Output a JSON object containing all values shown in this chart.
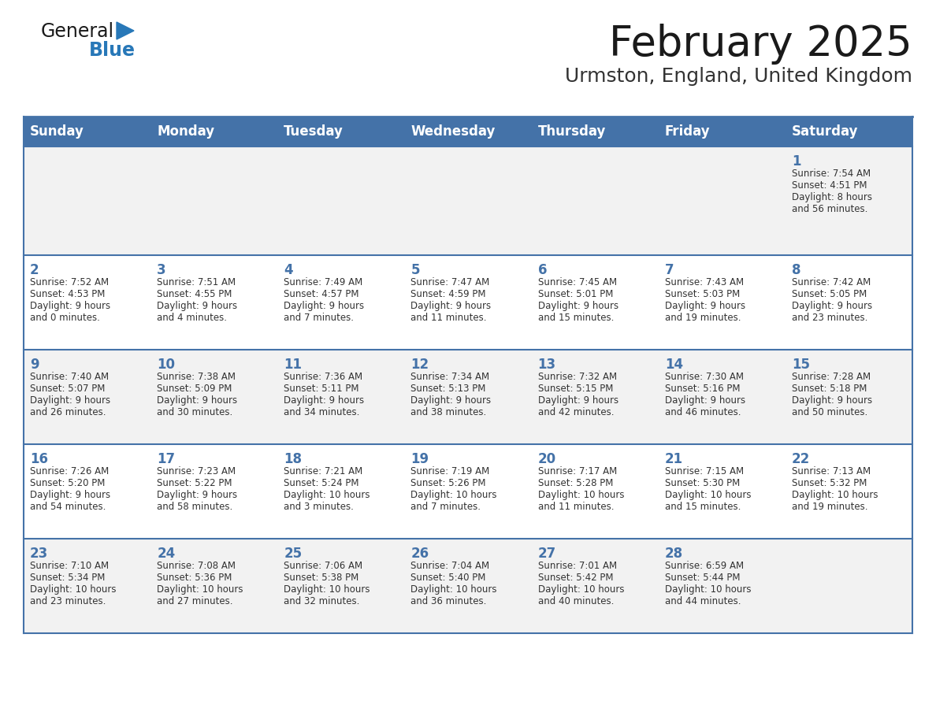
{
  "title": "February 2025",
  "subtitle": "Urmston, England, United Kingdom",
  "days_of_week": [
    "Sunday",
    "Monday",
    "Tuesday",
    "Wednesday",
    "Thursday",
    "Friday",
    "Saturday"
  ],
  "header_bg": "#4472a8",
  "header_text_color": "#ffffff",
  "cell_bg_week1": "#f2f2f2",
  "cell_bg_week2": "#ffffff",
  "cell_bg_week3": "#f2f2f2",
  "cell_bg_week4": "#ffffff",
  "cell_bg_week5": "#f2f2f2",
  "border_color": "#4472a8",
  "text_color": "#333333",
  "day_num_color": "#4472a8",
  "title_color": "#1a1a1a",
  "subtitle_color": "#333333",
  "weeks": [
    [
      null,
      null,
      null,
      null,
      null,
      null,
      {
        "day": 1,
        "sunrise": "7:54 AM",
        "sunset": "4:51 PM",
        "daylight_hours": 8,
        "daylight_minutes": 56
      }
    ],
    [
      {
        "day": 2,
        "sunrise": "7:52 AM",
        "sunset": "4:53 PM",
        "daylight_hours": 9,
        "daylight_minutes": 0
      },
      {
        "day": 3,
        "sunrise": "7:51 AM",
        "sunset": "4:55 PM",
        "daylight_hours": 9,
        "daylight_minutes": 4
      },
      {
        "day": 4,
        "sunrise": "7:49 AM",
        "sunset": "4:57 PM",
        "daylight_hours": 9,
        "daylight_minutes": 7
      },
      {
        "day": 5,
        "sunrise": "7:47 AM",
        "sunset": "4:59 PM",
        "daylight_hours": 9,
        "daylight_minutes": 11
      },
      {
        "day": 6,
        "sunrise": "7:45 AM",
        "sunset": "5:01 PM",
        "daylight_hours": 9,
        "daylight_minutes": 15
      },
      {
        "day": 7,
        "sunrise": "7:43 AM",
        "sunset": "5:03 PM",
        "daylight_hours": 9,
        "daylight_minutes": 19
      },
      {
        "day": 8,
        "sunrise": "7:42 AM",
        "sunset": "5:05 PM",
        "daylight_hours": 9,
        "daylight_minutes": 23
      }
    ],
    [
      {
        "day": 9,
        "sunrise": "7:40 AM",
        "sunset": "5:07 PM",
        "daylight_hours": 9,
        "daylight_minutes": 26
      },
      {
        "day": 10,
        "sunrise": "7:38 AM",
        "sunset": "5:09 PM",
        "daylight_hours": 9,
        "daylight_minutes": 30
      },
      {
        "day": 11,
        "sunrise": "7:36 AM",
        "sunset": "5:11 PM",
        "daylight_hours": 9,
        "daylight_minutes": 34
      },
      {
        "day": 12,
        "sunrise": "7:34 AM",
        "sunset": "5:13 PM",
        "daylight_hours": 9,
        "daylight_minutes": 38
      },
      {
        "day": 13,
        "sunrise": "7:32 AM",
        "sunset": "5:15 PM",
        "daylight_hours": 9,
        "daylight_minutes": 42
      },
      {
        "day": 14,
        "sunrise": "7:30 AM",
        "sunset": "5:16 PM",
        "daylight_hours": 9,
        "daylight_minutes": 46
      },
      {
        "day": 15,
        "sunrise": "7:28 AM",
        "sunset": "5:18 PM",
        "daylight_hours": 9,
        "daylight_minutes": 50
      }
    ],
    [
      {
        "day": 16,
        "sunrise": "7:26 AM",
        "sunset": "5:20 PM",
        "daylight_hours": 9,
        "daylight_minutes": 54
      },
      {
        "day": 17,
        "sunrise": "7:23 AM",
        "sunset": "5:22 PM",
        "daylight_hours": 9,
        "daylight_minutes": 58
      },
      {
        "day": 18,
        "sunrise": "7:21 AM",
        "sunset": "5:24 PM",
        "daylight_hours": 10,
        "daylight_minutes": 3
      },
      {
        "day": 19,
        "sunrise": "7:19 AM",
        "sunset": "5:26 PM",
        "daylight_hours": 10,
        "daylight_minutes": 7
      },
      {
        "day": 20,
        "sunrise": "7:17 AM",
        "sunset": "5:28 PM",
        "daylight_hours": 10,
        "daylight_minutes": 11
      },
      {
        "day": 21,
        "sunrise": "7:15 AM",
        "sunset": "5:30 PM",
        "daylight_hours": 10,
        "daylight_minutes": 15
      },
      {
        "day": 22,
        "sunrise": "7:13 AM",
        "sunset": "5:32 PM",
        "daylight_hours": 10,
        "daylight_minutes": 19
      }
    ],
    [
      {
        "day": 23,
        "sunrise": "7:10 AM",
        "sunset": "5:34 PM",
        "daylight_hours": 10,
        "daylight_minutes": 23
      },
      {
        "day": 24,
        "sunrise": "7:08 AM",
        "sunset": "5:36 PM",
        "daylight_hours": 10,
        "daylight_minutes": 27
      },
      {
        "day": 25,
        "sunrise": "7:06 AM",
        "sunset": "5:38 PM",
        "daylight_hours": 10,
        "daylight_minutes": 32
      },
      {
        "day": 26,
        "sunrise": "7:04 AM",
        "sunset": "5:40 PM",
        "daylight_hours": 10,
        "daylight_minutes": 36
      },
      {
        "day": 27,
        "sunrise": "7:01 AM",
        "sunset": "5:42 PM",
        "daylight_hours": 10,
        "daylight_minutes": 40
      },
      {
        "day": 28,
        "sunrise": "6:59 AM",
        "sunset": "5:44 PM",
        "daylight_hours": 10,
        "daylight_minutes": 44
      },
      null
    ]
  ],
  "cell_bgs": [
    "#f2f2f2",
    "#ffffff",
    "#f2f2f2",
    "#ffffff",
    "#f2f2f2"
  ]
}
